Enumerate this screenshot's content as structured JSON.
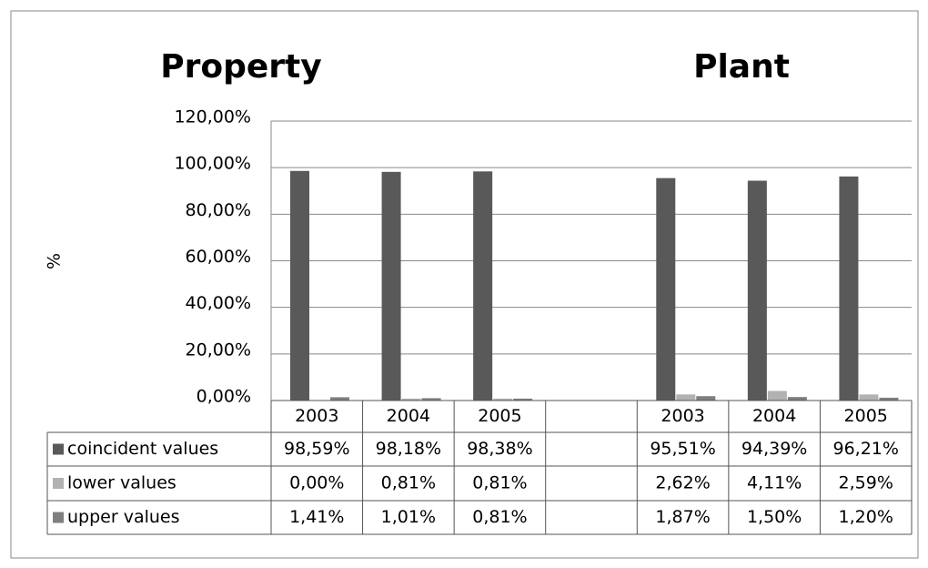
{
  "chart_data": {
    "type": "bar",
    "group_labels": [
      "Property",
      "Plant"
    ],
    "ylabel": "%",
    "categories": [
      "2003",
      "2004",
      "2005",
      null,
      "2003",
      "2004",
      "2005"
    ],
    "series": [
      {
        "name": "coincident  values",
        "color": "#595959",
        "values": [
          98.59,
          98.18,
          98.38,
          null,
          95.51,
          94.39,
          96.21
        ],
        "value_labels": [
          "98,59%",
          "98,18%",
          "98,38%",
          null,
          "95,51%",
          "94,39%",
          "96,21%"
        ]
      },
      {
        "name": "lower values",
        "color": "#b2b2b2",
        "values": [
          0.0,
          0.81,
          0.81,
          null,
          2.62,
          4.11,
          2.59
        ],
        "value_labels": [
          "0,00%",
          "0,81%",
          "0,81%",
          null,
          "2,62%",
          "4,11%",
          "2,59%"
        ]
      },
      {
        "name": "upper values",
        "color": "#7f7f7f",
        "values": [
          1.41,
          1.01,
          0.81,
          null,
          1.87,
          1.5,
          1.2
        ],
        "value_labels": [
          "1,41%",
          "1,01%",
          "0,81%",
          null,
          "1,87%",
          "1,50%",
          "1,20%"
        ]
      }
    ],
    "ylim": [
      0,
      120
    ],
    "yticks": [
      {
        "value": 0,
        "label": "0,00%"
      },
      {
        "value": 20,
        "label": "20,00%"
      },
      {
        "value": 40,
        "label": "40,00%"
      },
      {
        "value": 60,
        "label": "60,00%"
      },
      {
        "value": 80,
        "label": "80,00%"
      },
      {
        "value": 100,
        "label": "100,00%"
      },
      {
        "value": 120,
        "label": "120,00%"
      }
    ],
    "grid": true
  }
}
